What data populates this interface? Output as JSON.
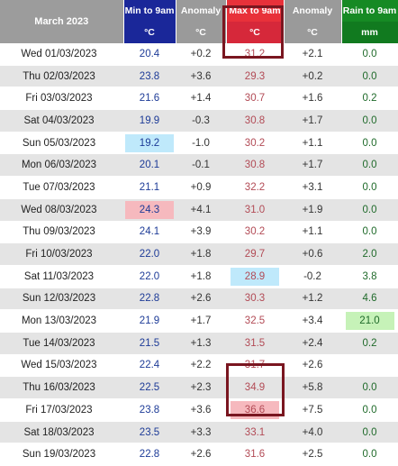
{
  "header": {
    "month": "March 2023",
    "col_min": "Min to 9am",
    "col_anom1": "Anomaly",
    "col_max": "Max to 9am",
    "col_anom2": "Anomaly",
    "col_rain": "Rain to 9am",
    "unit_min": "°C",
    "unit_anom1": "°C",
    "unit_max": "°C",
    "unit_anom2": "°C",
    "unit_rain": "mm"
  },
  "rows": [
    {
      "date": "Wed 01/03/2023",
      "min": "20.4",
      "anom_min": "+0.2",
      "max": "31.2",
      "anom_max": "+2.1",
      "rain": "0.0",
      "hl": {}
    },
    {
      "date": "Thu 02/03/2023",
      "min": "23.8",
      "anom_min": "+3.6",
      "max": "29.3",
      "anom_max": "+0.2",
      "rain": "0.0",
      "hl": {}
    },
    {
      "date": "Fri 03/03/2023",
      "min": "21.6",
      "anom_min": "+1.4",
      "max": "30.7",
      "anom_max": "+1.6",
      "rain": "0.2",
      "hl": {}
    },
    {
      "date": "Sat 04/03/2023",
      "min": "19.9",
      "anom_min": "-0.3",
      "max": "30.8",
      "anom_max": "+1.7",
      "rain": "0.0",
      "hl": {}
    },
    {
      "date": "Sun 05/03/2023",
      "min": "19.2",
      "anom_min": "-1.0",
      "max": "30.2",
      "anom_max": "+1.1",
      "rain": "0.0",
      "hl": {
        "min": "blue"
      }
    },
    {
      "date": "Mon 06/03/2023",
      "min": "20.1",
      "anom_min": "-0.1",
      "max": "30.8",
      "anom_max": "+1.7",
      "rain": "0.0",
      "hl": {}
    },
    {
      "date": "Tue 07/03/2023",
      "min": "21.1",
      "anom_min": "+0.9",
      "max": "32.2",
      "anom_max": "+3.1",
      "rain": "0.0",
      "hl": {}
    },
    {
      "date": "Wed 08/03/2023",
      "min": "24.3",
      "anom_min": "+4.1",
      "max": "31.0",
      "anom_max": "+1.9",
      "rain": "0.0",
      "hl": {
        "min": "red"
      }
    },
    {
      "date": "Thu 09/03/2023",
      "min": "24.1",
      "anom_min": "+3.9",
      "max": "30.2",
      "anom_max": "+1.1",
      "rain": "0.0",
      "hl": {}
    },
    {
      "date": "Fri 10/03/2023",
      "min": "22.0",
      "anom_min": "+1.8",
      "max": "29.7",
      "anom_max": "+0.6",
      "rain": "2.0",
      "hl": {}
    },
    {
      "date": "Sat 11/03/2023",
      "min": "22.0",
      "anom_min": "+1.8",
      "max": "28.9",
      "anom_max": "-0.2",
      "rain": "3.8",
      "hl": {
        "max": "blue"
      }
    },
    {
      "date": "Sun 12/03/2023",
      "min": "22.8",
      "anom_min": "+2.6",
      "max": "30.3",
      "anom_max": "+1.2",
      "rain": "4.6",
      "hl": {}
    },
    {
      "date": "Mon 13/03/2023",
      "min": "21.9",
      "anom_min": "+1.7",
      "max": "32.5",
      "anom_max": "+3.4",
      "rain": "21.0",
      "hl": {
        "rain": "green"
      }
    },
    {
      "date": "Tue 14/03/2023",
      "min": "21.5",
      "anom_min": "+1.3",
      "max": "31.5",
      "anom_max": "+2.4",
      "rain": "0.2",
      "hl": {}
    },
    {
      "date": "Wed 15/03/2023",
      "min": "22.4",
      "anom_min": "+2.2",
      "max": "31.7",
      "anom_max": "+2.6",
      "rain": "",
      "hl": {}
    },
    {
      "date": "Thu 16/03/2023",
      "min": "22.5",
      "anom_min": "+2.3",
      "max": "34.9",
      "anom_max": "+5.8",
      "rain": "0.0",
      "hl": {}
    },
    {
      "date": "Fri 17/03/2023",
      "min": "23.8",
      "anom_min": "+3.6",
      "max": "36.6",
      "anom_max": "+7.5",
      "rain": "0.0",
      "hl": {
        "max": "red"
      }
    },
    {
      "date": "Sat 18/03/2023",
      "min": "23.5",
      "anom_min": "+3.3",
      "max": "33.1",
      "anom_max": "+4.0",
      "rain": "0.0",
      "hl": {}
    },
    {
      "date": "Sun 19/03/2023",
      "min": "22.8",
      "anom_min": "+2.6",
      "max": "31.6",
      "anom_max": "+2.5",
      "rain": "0.0",
      "hl": {}
    }
  ]
}
